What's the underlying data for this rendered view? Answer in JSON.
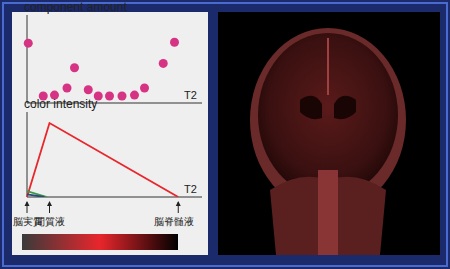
{
  "chart_data": [
    {
      "type": "scatter",
      "y_label": "component amount",
      "x_label": "T2",
      "x": [
        0.1,
        1.3,
        2.2,
        3.2,
        3.8,
        4.9,
        5.7,
        6.6,
        7.6,
        8.6,
        9.4,
        10.9,
        11.8
      ],
      "values": [
        6.8,
        0.8,
        0.9,
        1.7,
        4.0,
        1.5,
        0.8,
        0.8,
        0.8,
        0.9,
        1.7,
        4.5,
        6.9
      ],
      "color": "#d63384",
      "marker": "circle",
      "xlim": [
        0,
        14
      ],
      "ylim": [
        0,
        10
      ],
      "tick_labels": false,
      "grid": false
    },
    {
      "type": "line",
      "y_label": "color intensity",
      "x_label": "T2",
      "series": [
        {
          "color": "#e8262c",
          "x": [
            0,
            1.8,
            12.1
          ],
          "values": [
            0,
            8.7,
            0
          ]
        },
        {
          "color": "#3a9a4a",
          "x": [
            0,
            1.6
          ],
          "values": [
            0.7,
            0
          ]
        },
        {
          "color": "#2a4a7a",
          "x": [
            0,
            1.4
          ],
          "values": [
            0.3,
            0
          ]
        }
      ],
      "annotations": [
        {
          "text": "脳実質",
          "x": 0
        },
        {
          "text": "間質液",
          "x": 1.8
        },
        {
          "text": "脳脊髄液",
          "x": 12.1
        }
      ],
      "xlim": [
        0,
        14
      ],
      "ylim": [
        0,
        10
      ],
      "tick_labels": false,
      "grid": false
    }
  ],
  "colorbar": {
    "colors": [
      "#3a3a3a",
      "#e8262c",
      "#000000"
    ]
  }
}
